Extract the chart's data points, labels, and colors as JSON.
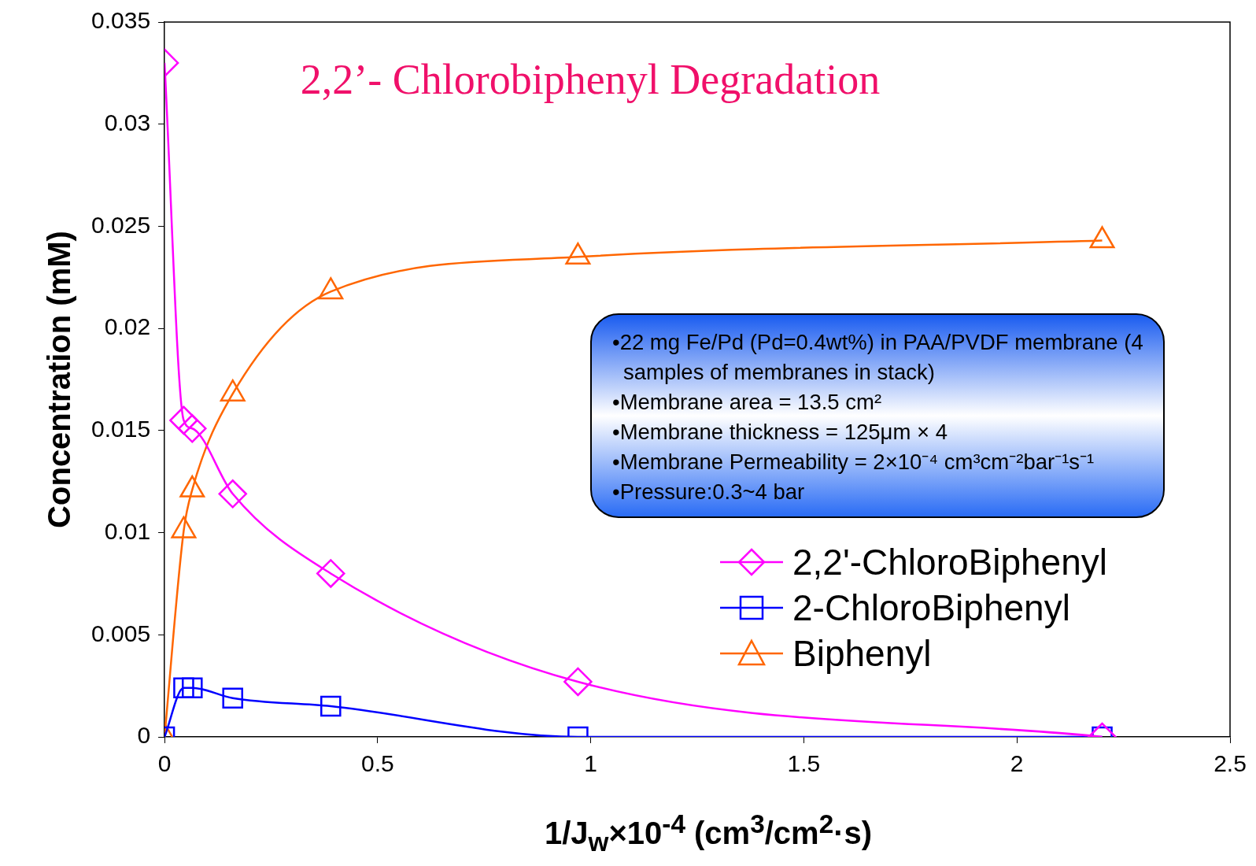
{
  "chart_data": {
    "type": "line",
    "title": "2,2’- Chlorobiphenyl Degradation",
    "xlabel": "1/J$_{w}$×10$^{-4}$ (cm$^{3}$/cm$^{2}$·s)",
    "ylabel": "Concentration (mM)",
    "x": [
      0,
      0.045,
      0.065,
      0.16,
      0.39,
      0.97,
      2.2
    ],
    "series": [
      {
        "name": "2,2'-ChloroBiphenyl",
        "color": "#ff00ff",
        "marker": "diamond",
        "values": [
          0.033,
          0.0155,
          0.0151,
          0.0119,
          0.008,
          0.0027,
          0
        ]
      },
      {
        "name": "2-ChloroBiphenyl",
        "color": "#0000ff",
        "marker": "square",
        "values": [
          0,
          0.0024,
          0.0024,
          0.0019,
          0.0015,
          0,
          0
        ]
      },
      {
        "name": "Biphenyl",
        "color": "#ff6600",
        "marker": "triangle",
        "values": [
          0,
          0.0101,
          0.0121,
          0.0168,
          0.0218,
          0.0235,
          0.0243
        ]
      }
    ],
    "xlim": [
      0,
      2.5
    ],
    "xticks": [
      0,
      0.5,
      1,
      1.5,
      2,
      2.5
    ],
    "ylim": [
      0,
      0.035
    ],
    "yticks": [
      0,
      0.005,
      0.01,
      0.015,
      0.02,
      0.025,
      0.03,
      0.035
    ],
    "grid": false,
    "legend": "bottom right",
    "line_style": "solid",
    "annotations": [
      "•22 mg Fe/Pd (Pd=0.4wt%) in PAA/PVDF membrane (4 samples of membranes in stack)",
      "•Membrane  area = 13.5 cm²",
      "•Membrane thickness = 125μm × 4",
      "•Membrane Permeability = 2×10⁻⁴ cm³cm⁻²bar⁻¹s⁻¹",
      "•Pressure:0.3~4 bar"
    ]
  }
}
